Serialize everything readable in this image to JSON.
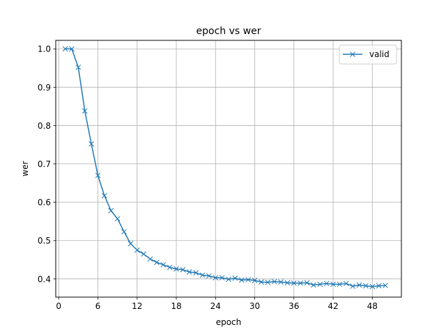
{
  "chart_data": {
    "type": "line",
    "title": "epoch vs wer",
    "xlabel": "epoch",
    "ylabel": "wer",
    "xlim": [
      -0.45,
      52.45
    ],
    "ylim": [
      0.3525,
      1.0222
    ],
    "xticks": [
      0,
      6,
      12,
      18,
      24,
      30,
      36,
      42,
      48
    ],
    "yticks": [
      0.4,
      0.5,
      0.6,
      0.7,
      0.8,
      0.9,
      1.0
    ],
    "ytick_labels": [
      "0.4",
      "0.5",
      "0.6",
      "0.7",
      "0.8",
      "0.9",
      "1.0"
    ],
    "grid": true,
    "legend_position": "top-right",
    "series": [
      {
        "name": "valid",
        "color": "#1f77b4",
        "marker": "x",
        "x": [
          1,
          2,
          3,
          4,
          5,
          6,
          7,
          8,
          9,
          10,
          11,
          12,
          13,
          14,
          15,
          16,
          17,
          18,
          19,
          20,
          21,
          22,
          23,
          24,
          25,
          26,
          27,
          28,
          29,
          30,
          31,
          32,
          33,
          34,
          35,
          36,
          37,
          38,
          39,
          40,
          41,
          42,
          43,
          44,
          45,
          46,
          47,
          48,
          49,
          50
        ],
        "y": [
          1.0,
          1.0,
          0.952,
          0.838,
          0.752,
          0.67,
          0.617,
          0.578,
          0.557,
          0.523,
          0.492,
          0.475,
          0.465,
          0.452,
          0.443,
          0.437,
          0.43,
          0.426,
          0.424,
          0.418,
          0.416,
          0.41,
          0.408,
          0.403,
          0.403,
          0.399,
          0.402,
          0.397,
          0.398,
          0.396,
          0.392,
          0.391,
          0.393,
          0.392,
          0.39,
          0.389,
          0.389,
          0.39,
          0.384,
          0.386,
          0.388,
          0.386,
          0.386,
          0.388,
          0.381,
          0.384,
          0.382,
          0.38,
          0.382,
          0.383
        ]
      }
    ]
  }
}
